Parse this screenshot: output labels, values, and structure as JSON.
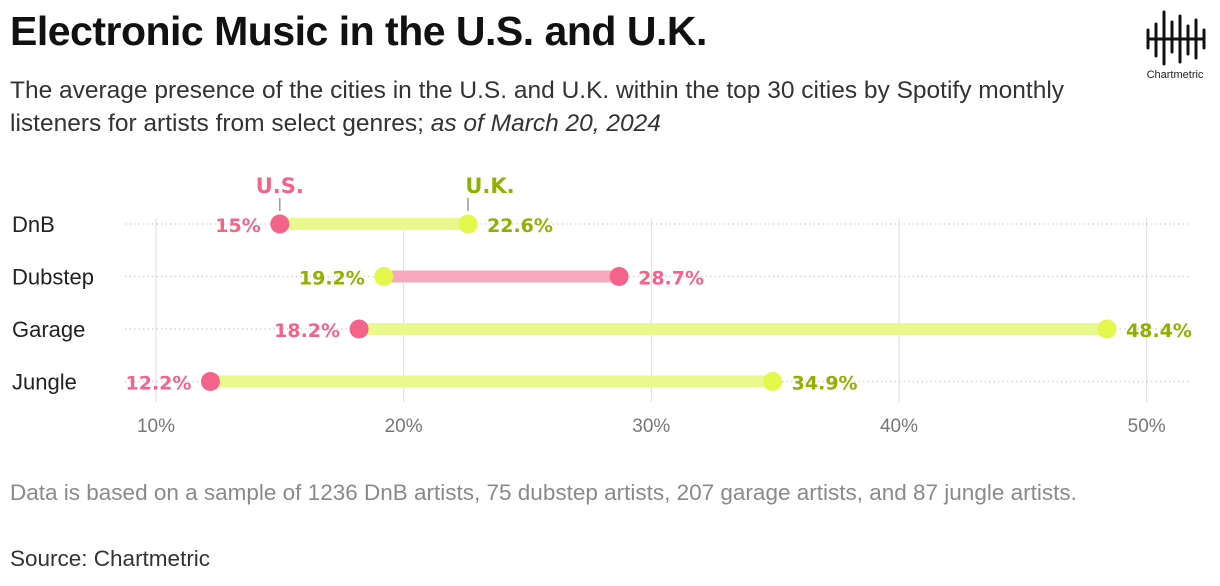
{
  "header": {
    "title": "Electronic Music in the U.S. and U.K.",
    "subtitle": "The average presence of the cities in the U.S. and U.K. within the top 30 cities by Spotify monthly listeners for artists from select genres;",
    "subtitle_date": "as of March 20, 2024"
  },
  "logo": {
    "name": "Chartmetric"
  },
  "footer": {
    "note": "Data is based on a sample of 1236 DnB artists, 75 dubstep artists, 207 garage artists, and 87 jungle artists.",
    "source": "Source: Chartmetric"
  },
  "colors": {
    "us": "#f4638a",
    "uk_dot": "#e3f74d",
    "uk_label": "#8fb100",
    "bar_uk_higher": "#eaf98e",
    "bar_us_higher": "#f7a8bd",
    "grid": "#dddddd",
    "tick_text": "#777777"
  },
  "chart_data": {
    "type": "dumbbell",
    "categories": [
      "DnB",
      "Dubstep",
      "Garage",
      "Jungle"
    ],
    "series": [
      {
        "name": "U.S.",
        "values": [
          15,
          28.7,
          18.2,
          12.2
        ]
      },
      {
        "name": "U.K.",
        "values": [
          22.6,
          19.2,
          48.4,
          34.9
        ]
      }
    ],
    "value_labels": {
      "U.S.": [
        "15%",
        "28.7%",
        "18.2%",
        "12.2%"
      ],
      "U.K.": [
        "22.6%",
        "19.2%",
        "48.4%",
        "34.9%"
      ]
    },
    "xlim": [
      8.75,
      51.75
    ],
    "xticks": [
      10,
      20,
      30,
      40,
      50
    ],
    "xtick_labels": [
      "10%",
      "20%",
      "30%",
      "40%",
      "50%"
    ],
    "legend": {
      "position": "top-left, above first row",
      "labels": [
        "U.S.",
        "U.K."
      ]
    },
    "grid": "vertical major gridlines, dotted horizontal row lines"
  }
}
